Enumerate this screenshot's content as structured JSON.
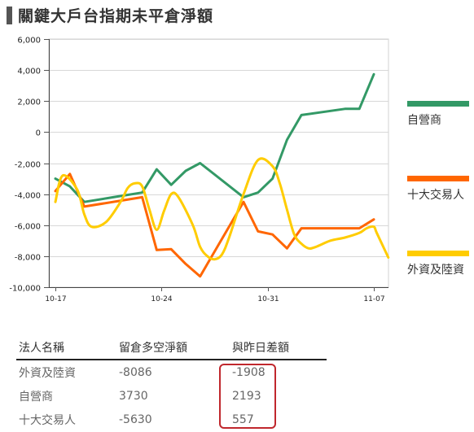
{
  "page": {
    "title": "關鍵大戶台指期未平倉淨額"
  },
  "chart_data": {
    "type": "line",
    "ylim": [
      -10000,
      6000
    ],
    "yticks": [
      6000,
      4000,
      2000,
      0,
      -2000,
      -4000,
      -6000,
      -8000,
      -10000
    ],
    "ytick_labels": [
      "6,000",
      "4,000",
      "2,000",
      "0",
      "-2,000",
      "-4,000",
      "-6,000",
      "-8,000",
      "-10,000"
    ],
    "xticks": [
      {
        "x": 0,
        "label": "10-17"
      },
      {
        "x": 7,
        "label": "10-24"
      },
      {
        "x": 14,
        "label": "10-31"
      },
      {
        "x": 21,
        "label": "11-07"
      }
    ],
    "xlim": [
      0,
      21
    ],
    "grid": "horizontal",
    "legend_position": "right",
    "series": [
      {
        "name": "自營商",
        "color": "#339966",
        "smooth": false,
        "points": [
          [
            0,
            -3000
          ],
          [
            1,
            -3500
          ],
          [
            2,
            -4500
          ],
          [
            4,
            -4200
          ],
          [
            6,
            -3900
          ],
          [
            7,
            -2400
          ],
          [
            8,
            -3400
          ],
          [
            9,
            -2500
          ],
          [
            10,
            -2000
          ],
          [
            13,
            -4200
          ],
          [
            14,
            -3900
          ],
          [
            15,
            -3000
          ],
          [
            16,
            -500
          ],
          [
            17,
            1100
          ],
          [
            20,
            1500
          ],
          [
            21,
            1500
          ],
          [
            22,
            3730
          ]
        ]
      },
      {
        "name": "十大交易人",
        "color": "#ff6600",
        "smooth": false,
        "points": [
          [
            0,
            -3800
          ],
          [
            1,
            -2700
          ],
          [
            2,
            -4800
          ],
          [
            6,
            -4200
          ],
          [
            7,
            -7600
          ],
          [
            8,
            -7550
          ],
          [
            9,
            -8500
          ],
          [
            10,
            -9300
          ],
          [
            13,
            -4500
          ],
          [
            14,
            -6400
          ],
          [
            15,
            -6600
          ],
          [
            16,
            -7500
          ],
          [
            17,
            -6200
          ],
          [
            19,
            -6200
          ],
          [
            21,
            -6200
          ],
          [
            22,
            -5630
          ]
        ]
      },
      {
        "name": "外資及陸資",
        "color": "#ffcc00",
        "smooth": true,
        "points": [
          [
            0,
            -4500
          ],
          [
            0.5,
            -2800
          ],
          [
            1.5,
            -3700
          ],
          [
            2,
            -5300
          ],
          [
            2.5,
            -6100
          ],
          [
            3.5,
            -5800
          ],
          [
            4.5,
            -4500
          ],
          [
            5,
            -3600
          ],
          [
            5.5,
            -3300
          ],
          [
            6,
            -3500
          ],
          [
            6.5,
            -5000
          ],
          [
            7,
            -6300
          ],
          [
            7.5,
            -5100
          ],
          [
            8,
            -4000
          ],
          [
            8.5,
            -4200
          ],
          [
            9.5,
            -6000
          ],
          [
            10,
            -7400
          ],
          [
            10.5,
            -8000
          ],
          [
            11,
            -8200
          ],
          [
            11.5,
            -7900
          ],
          [
            12,
            -6800
          ],
          [
            13,
            -4000
          ],
          [
            14,
            -1800
          ],
          [
            15,
            -2200
          ],
          [
            15.5,
            -3300
          ],
          [
            16,
            -5000
          ],
          [
            16.5,
            -6600
          ],
          [
            17,
            -7200
          ],
          [
            17.5,
            -7500
          ],
          [
            18,
            -7400
          ],
          [
            19,
            -7000
          ],
          [
            20,
            -6800
          ],
          [
            21,
            -6500
          ],
          [
            21.5,
            -6200
          ],
          [
            22,
            -6100
          ],
          [
            22.2,
            -6500
          ],
          [
            23,
            -8086
          ]
        ]
      }
    ]
  },
  "table": {
    "headers": [
      "法人名稱",
      "留倉多空淨額",
      "與昨日差額"
    ],
    "rows": [
      [
        "外資及陸資",
        "-8086",
        "-1908"
      ],
      [
        "自營商",
        "3730",
        "2193"
      ],
      [
        "十大交易人",
        "-5630",
        "557"
      ]
    ]
  }
}
